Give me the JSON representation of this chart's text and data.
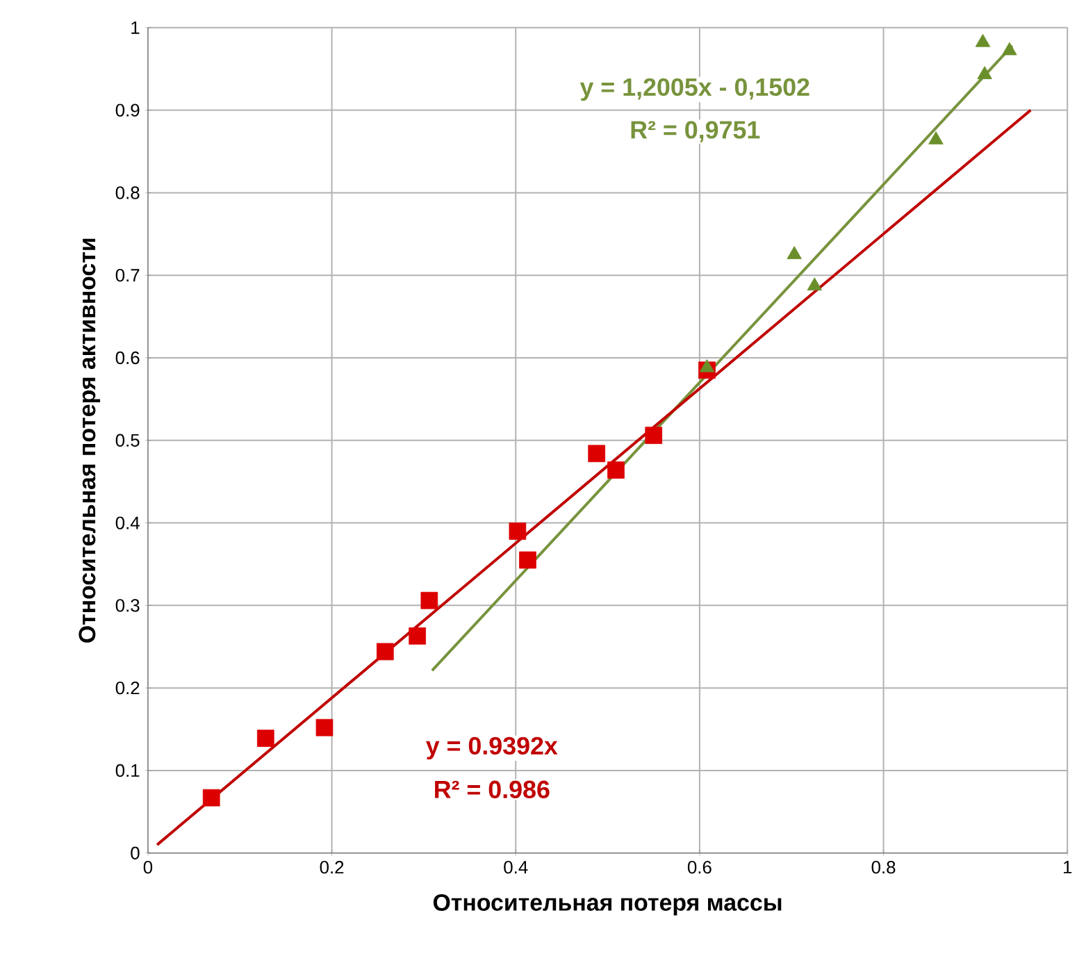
{
  "chart_data": {
    "type": "scatter",
    "xlabel": "Относительная потеря массы",
    "ylabel": "Относительная потеря активности",
    "xlim": [
      0,
      1
    ],
    "ylim": [
      0,
      1
    ],
    "xticks": [
      0,
      0.2,
      0.4,
      0.6,
      0.8,
      1
    ],
    "yticks": [
      0,
      0.1,
      0.2,
      0.3,
      0.4,
      0.5,
      0.6,
      0.7,
      0.8,
      0.9,
      1
    ],
    "grid": true,
    "series": [
      {
        "marker": "square",
        "color": "#dd0000",
        "x": [
          0.069,
          0.128,
          0.192,
          0.258,
          0.293,
          0.306,
          0.402,
          0.413,
          0.488,
          0.509,
          0.55,
          0.608
        ],
        "values": [
          0.067,
          0.139,
          0.152,
          0.244,
          0.263,
          0.306,
          0.39,
          0.355,
          0.484,
          0.464,
          0.506,
          0.585
        ]
      },
      {
        "marker": "triangle",
        "color": "#6a8f2a",
        "x": [
          0.608,
          0.703,
          0.725,
          0.857,
          0.908,
          0.91,
          0.937
        ],
        "values": [
          0.588,
          0.725,
          0.687,
          0.864,
          0.982,
          0.943,
          0.972
        ]
      },
      {
        "type": "line",
        "marker": "none",
        "color": "#77933c",
        "x": [
          0.309,
          0.94
        ],
        "values": [
          0.221,
          0.978
        ]
      },
      {
        "type": "line",
        "marker": "none",
        "color": "#c00000",
        "x": [
          0.01,
          0.96
        ],
        "values": [
          0.01,
          0.9
        ]
      }
    ],
    "annotations": [
      "y = 1,2005x - 0,1502",
      "R² = 0,9751",
      "y = 0.9392x",
      "R² = 0.986"
    ]
  }
}
